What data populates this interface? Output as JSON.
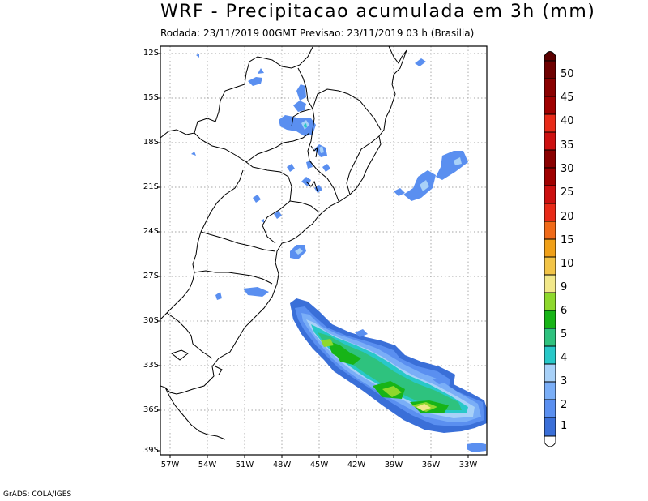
{
  "header": {
    "title": "WRF - Precipitacao acumulada em 3h (mm)",
    "subtitle": "Rodada: 23/11/2019 00GMT Previsao: 23/11/2019 03 h (Brasilia)"
  },
  "footer": {
    "credit": "GrADS: COLA/IGES"
  },
  "map": {
    "lat_labels": [
      "12S",
      "15S",
      "18S",
      "21S",
      "24S",
      "27S",
      "30S",
      "33S",
      "36S",
      "39S"
    ],
    "lon_labels": [
      "57W",
      "54W",
      "51W",
      "48W",
      "45W",
      "42W",
      "39W",
      "36W",
      "33W"
    ],
    "lat_range": [
      -39.5,
      -11.8
    ],
    "lon_range": [
      -58.2,
      -31.8
    ],
    "grid": "dotted"
  },
  "colorbar": {
    "labels": [
      "1",
      "2",
      "3",
      "4",
      "5",
      "6",
      "9",
      "10",
      "15",
      "20",
      "25",
      "30",
      "35",
      "40",
      "45",
      "50"
    ],
    "colors": [
      "#ffffff",
      "#3a6fd8",
      "#5a8ff0",
      "#7aaef7",
      "#a8d1f8",
      "#28c8c8",
      "#2ec27e",
      "#17b417",
      "#8ed82d",
      "#f2e88a",
      "#f2c447",
      "#f0a018",
      "#f06a18",
      "#e82a18",
      "#cc1010",
      "#a00000",
      "#5a0000"
    ]
  }
}
